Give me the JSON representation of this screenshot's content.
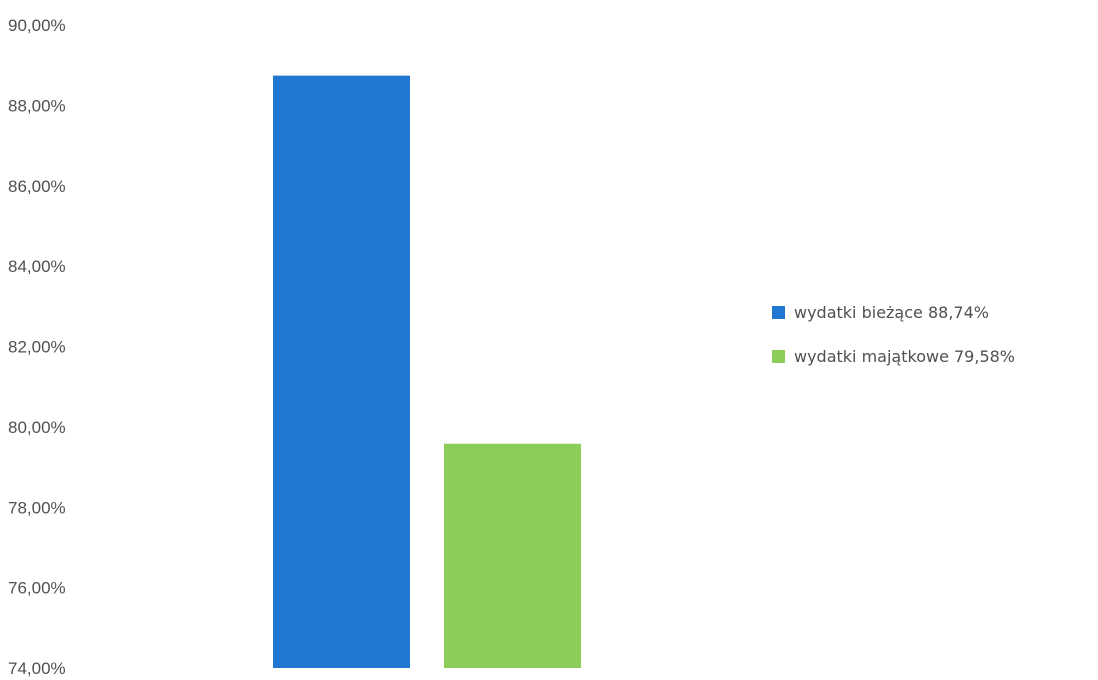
{
  "chart_data": {
    "type": "bar",
    "y_ticks": [
      "74,00%",
      "76,00%",
      "78,00%",
      "80,00%",
      "82,00%",
      "84,00%",
      "86,00%",
      "88,00%",
      "90,00%"
    ],
    "ylim": [
      74,
      90
    ],
    "grid": false,
    "legend_position": "right",
    "series": [
      {
        "name": "wydatki bieżące 88,74%",
        "value": 88.74,
        "color": "#2277d2"
      },
      {
        "name": "wydatki majątkowe 79,58%",
        "value": 79.58,
        "color": "#8ccd5a"
      }
    ]
  }
}
